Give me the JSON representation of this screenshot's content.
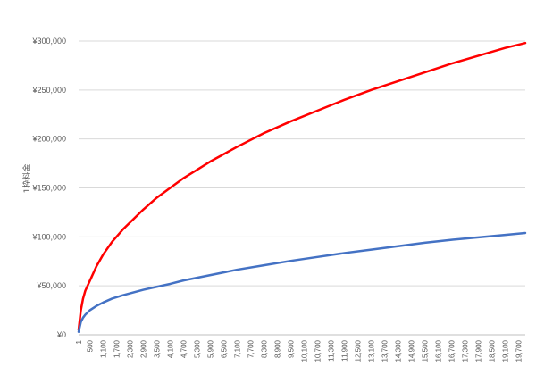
{
  "chart_data": {
    "type": "line",
    "title": "",
    "xlabel": "",
    "ylabel": "1枠料金",
    "ylim": [
      0,
      300000
    ],
    "xlim": [
      1,
      20000
    ],
    "y_ticks": [
      0,
      50000,
      100000,
      150000,
      200000,
      250000,
      300000
    ],
    "y_tick_labels": [
      "¥0",
      "¥50,000",
      "¥100,000",
      "¥150,000",
      "¥200,000",
      "¥250,000",
      "¥300,000"
    ],
    "x_tick_labels": [
      "1",
      "500",
      "1,100",
      "1,700",
      "2,300",
      "2,900",
      "3,500",
      "4,100",
      "4,700",
      "5,300",
      "5,900",
      "6,500",
      "7,100",
      "7,700",
      "8,300",
      "8,900",
      "9,500",
      "10,100",
      "10,700",
      "11,300",
      "11,900",
      "12,500",
      "13,100",
      "13,700",
      "14,300",
      "14,900",
      "15,500",
      "16,100",
      "16,700",
      "17,300",
      "17,900",
      "18,500",
      "19,100",
      "19,700"
    ],
    "x_tick_values": [
      1,
      500,
      1100,
      1700,
      2300,
      2900,
      3500,
      4100,
      4700,
      5300,
      5900,
      6500,
      7100,
      7700,
      8300,
      8900,
      9500,
      10100,
      10700,
      11300,
      11900,
      12500,
      13100,
      13700,
      14300,
      14900,
      15500,
      16100,
      16700,
      17300,
      17900,
      18500,
      19100,
      19700
    ],
    "grid": true,
    "legend": "none",
    "series": [
      {
        "color": "#ff0000",
        "x": [
          1,
          100,
          200,
          300,
          500,
          800,
          1100,
          1500,
          2000,
          2900,
          3500,
          4100,
          4700,
          5900,
          7100,
          8300,
          9500,
          10700,
          11900,
          13100,
          14300,
          15500,
          16700,
          17900,
          19100,
          20000
        ],
        "values": [
          5000,
          25000,
          37000,
          45000,
          55000,
          70000,
          82000,
          95000,
          108000,
          128000,
          140000,
          150000,
          160000,
          177000,
          192000,
          206000,
          218000,
          229000,
          240000,
          250000,
          259000,
          268000,
          277000,
          285000,
          293000,
          298000
        ]
      },
      {
        "color": "#4472c4",
        "x": [
          1,
          100,
          200,
          300,
          500,
          800,
          1100,
          1500,
          2000,
          2900,
          3500,
          4100,
          4700,
          5900,
          7100,
          8300,
          9500,
          10700,
          11900,
          13100,
          14300,
          15500,
          16700,
          17900,
          19100,
          20000
        ],
        "values": [
          3000,
          13000,
          17500,
          20500,
          25000,
          29500,
          33000,
          37000,
          40500,
          46000,
          49000,
          52000,
          55500,
          61000,
          66500,
          71000,
          75500,
          79500,
          83500,
          87000,
          90500,
          94000,
          97000,
          99500,
          102000,
          104000
        ]
      }
    ]
  }
}
